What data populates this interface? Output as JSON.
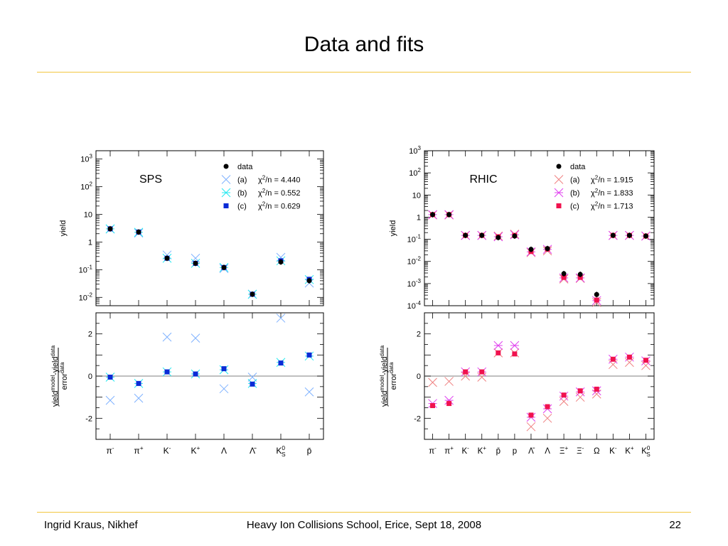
{
  "slide": {
    "title": "Data and fits",
    "footer_left": "Ingrid Kraus, Nikhef",
    "footer_center": "Heavy Ion Collisions School, Erice, Sept 18, 2008",
    "page_number": "22"
  },
  "legend_labels": {
    "data": "data",
    "a": "(a)",
    "b": "(b)",
    "c": "(c)"
  },
  "colors": {
    "rule": "#f2c640",
    "sps_a": "#7fb2ff",
    "sps_b": "#22e8f0",
    "sps_c": "#0a2bd6",
    "rhic_a": "#ef8080",
    "rhic_b": "#e040ef",
    "rhic_c": "#f0124e",
    "data": "#000000"
  },
  "chart_data": [
    {
      "type": "scatter",
      "title": "SPS",
      "ylabel": "yield",
      "yscale": "log",
      "ylim": [
        0.005,
        2000
      ],
      "yticks": [
        "10-2",
        "10-1",
        "1",
        "10",
        "102",
        "103"
      ],
      "categories": [
        "π-",
        "π+",
        "K-",
        "K+",
        "Λ",
        "Λ̄",
        "K0S",
        "p̄"
      ],
      "series": [
        {
          "name": "data",
          "values": [
            3.0,
            2.3,
            0.26,
            0.17,
            0.12,
            0.013,
            0.19,
            0.04
          ]
        },
        {
          "name": "(a)",
          "values": [
            2.95,
            2.1,
            0.34,
            0.26,
            0.11,
            0.013,
            0.28,
            0.033
          ]
        },
        {
          "name": "(b)",
          "values": [
            3.0,
            2.25,
            0.26,
            0.17,
            0.12,
            0.013,
            0.21,
            0.044
          ]
        },
        {
          "name": "(c)",
          "values": [
            3.0,
            2.3,
            0.26,
            0.17,
            0.12,
            0.013,
            0.21,
            0.045
          ]
        }
      ],
      "chi2": [
        {
          "label": "(a)",
          "text": "χ2/n = 4.440"
        },
        {
          "label": "(b)",
          "text": "χ2/n = 0.552"
        },
        {
          "label": "(c)",
          "text": "χ2/n = 0.629"
        }
      ],
      "residuals": {
        "ylabel": "yieldmodel-yielddata / errordata",
        "ylim": [
          -3,
          3
        ],
        "yticks": [
          -2,
          0,
          2
        ],
        "series": [
          {
            "name": "(a)",
            "values": [
              -1.15,
              -1.05,
              1.85,
              1.8,
              -0.6,
              -0.05,
              2.75,
              -0.75
            ]
          },
          {
            "name": "(b)",
            "values": [
              -0.05,
              -0.35,
              0.2,
              0.1,
              0.3,
              -0.35,
              0.65,
              0.95
            ]
          },
          {
            "name": "(c)",
            "values": [
              -0.05,
              -0.35,
              0.2,
              0.1,
              0.35,
              -0.38,
              0.62,
              1.0
            ]
          }
        ]
      }
    },
    {
      "type": "scatter",
      "title": "RHIC",
      "ylabel": "yield",
      "yscale": "log",
      "ylim": [
        0.0001,
        1000
      ],
      "yticks": [
        "10-4",
        "10-3",
        "10-2",
        "10-1",
        "1",
        "10",
        "102",
        "103"
      ],
      "categories": [
        "π-",
        "π+",
        "K-",
        "K+",
        "p̄",
        "p",
        "Λ̄",
        "Λ",
        "Ξ+",
        "Ξ-",
        "Ω",
        "K-",
        "K+",
        "K0S"
      ],
      "series": [
        {
          "name": "data",
          "values": [
            1.3,
            1.3,
            0.15,
            0.15,
            0.12,
            0.14,
            0.035,
            0.038,
            0.0028,
            0.0026,
            0.00032,
            0.15,
            0.15,
            0.14
          ]
        },
        {
          "name": "(a)",
          "values": [
            1.25,
            1.25,
            0.15,
            0.15,
            0.14,
            0.17,
            0.025,
            0.03,
            0.0016,
            0.0017,
            0.00014,
            0.15,
            0.15,
            0.14
          ]
        },
        {
          "name": "(b)",
          "values": [
            1.3,
            1.3,
            0.15,
            0.15,
            0.13,
            0.16,
            0.027,
            0.035,
            0.0018,
            0.0018,
            0.00017,
            0.15,
            0.15,
            0.14
          ]
        },
        {
          "name": "(c)",
          "values": [
            1.3,
            1.3,
            0.15,
            0.15,
            0.13,
            0.15,
            0.028,
            0.036,
            0.0019,
            0.0019,
            0.00018,
            0.15,
            0.15,
            0.14
          ]
        }
      ],
      "chi2": [
        {
          "label": "(a)",
          "text": "χ2/n = 1.915"
        },
        {
          "label": "(b)",
          "text": "χ2/n = 1.833"
        },
        {
          "label": "(c)",
          "text": "χ2/n = 1.713"
        }
      ],
      "residuals": {
        "ylabel": "yieldmodel-yielddata / errordata",
        "ylim": [
          -3,
          3
        ],
        "yticks": [
          -2,
          0,
          2
        ],
        "series": [
          {
            "name": "(a)",
            "values": [
              -0.3,
              -0.25,
              0.0,
              -0.05,
              1.1,
              1.1,
              -2.4,
              -2.0,
              -1.2,
              -1.0,
              -0.85,
              0.55,
              0.65,
              0.5
            ]
          },
          {
            "name": "(b)",
            "values": [
              -1.3,
              -1.15,
              0.2,
              0.2,
              1.45,
              1.45,
              -1.95,
              -1.55,
              -0.95,
              -0.75,
              -0.7,
              0.8,
              0.9,
              0.72
            ]
          },
          {
            "name": "(c)",
            "values": [
              -1.4,
              -1.3,
              0.2,
              0.2,
              1.1,
              1.05,
              -1.85,
              -1.45,
              -0.9,
              -0.7,
              -0.62,
              0.8,
              0.9,
              0.75
            ]
          }
        ]
      }
    }
  ]
}
